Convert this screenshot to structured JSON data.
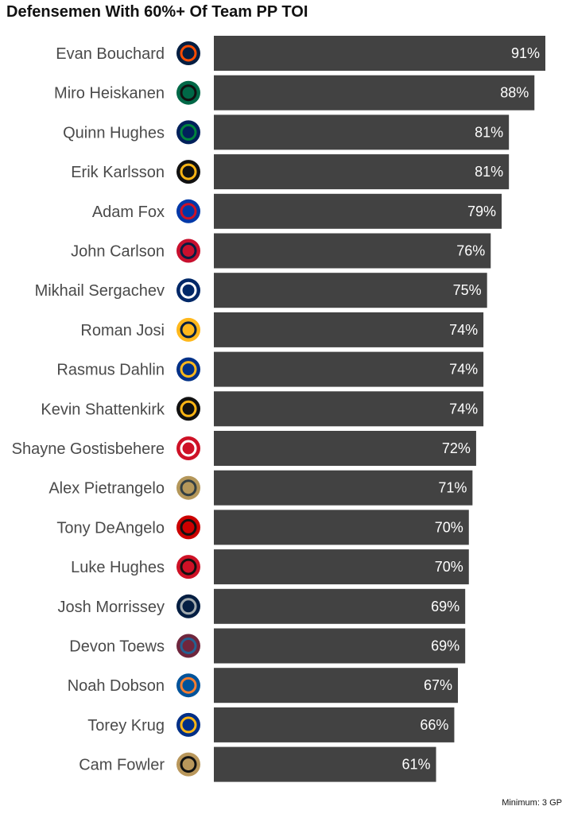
{
  "chart_data": {
    "type": "bar",
    "orientation": "horizontal",
    "title": "Defensemen With 60%+ Of Team PP TOI",
    "caption": "Minimum: 3 GP",
    "value_suffix": "%",
    "bar_color": "#424242",
    "xlim": [
      0,
      91
    ],
    "categories": [
      "Evan Bouchard",
      "Miro Heiskanen",
      "Quinn Hughes",
      "Erik Karlsson",
      "Adam Fox",
      "John Carlson",
      "Mikhail Sergachev",
      "Roman Josi",
      "Rasmus Dahlin",
      "Kevin Shattenkirk",
      "Shayne Gostisbehere",
      "Alex Pietrangelo",
      "Tony DeAngelo",
      "Luke Hughes",
      "Josh Morrissey",
      "Devon Toews",
      "Noah Dobson",
      "Torey Krug",
      "Cam Fowler"
    ],
    "values": [
      91,
      88,
      81,
      81,
      79,
      76,
      75,
      74,
      74,
      74,
      72,
      71,
      70,
      70,
      69,
      69,
      67,
      66,
      61
    ],
    "team_logos": [
      "oilers-logo-icon",
      "stars-logo-icon",
      "canucks-logo-icon",
      "penguins-logo-icon",
      "rangers-logo-icon",
      "capitals-logo-icon",
      "lightning-logo-icon",
      "predators-logo-icon",
      "sabres-logo-icon",
      "bruins-logo-icon",
      "red-wings-logo-icon",
      "golden-knights-logo-icon",
      "hurricanes-logo-icon",
      "devils-logo-icon",
      "jets-logo-icon",
      "avalanche-logo-icon",
      "islanders-logo-icon",
      "blues-logo-icon",
      "ducks-logo-icon"
    ]
  }
}
